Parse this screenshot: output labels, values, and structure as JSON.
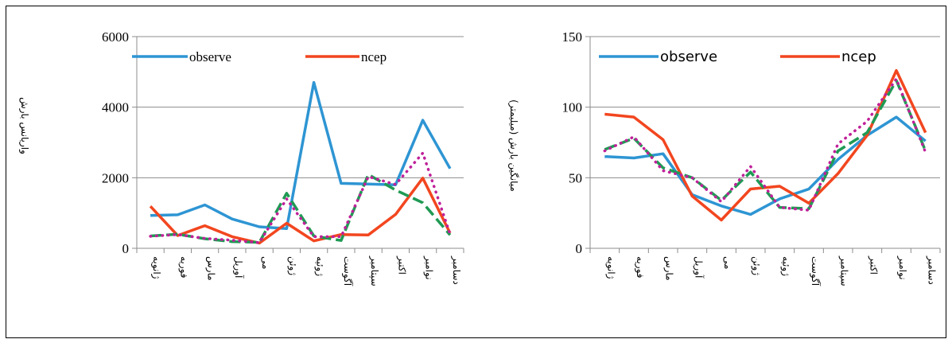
{
  "chart_data": [
    {
      "type": "line",
      "title": "",
      "ylabel": "واریانس بارش",
      "xlabel": "",
      "ylim": [
        0,
        6000
      ],
      "yticks": [
        0,
        2000,
        4000,
        6000
      ],
      "grid": true,
      "legend_position": "top",
      "categories": [
        "ژانویه",
        "فوریه",
        "مارس",
        "آوریل",
        "می",
        "ژوئن",
        "ژوئیه",
        "آگوست",
        "سپتامبر",
        "اکتبر",
        "نوامبر",
        "دسامبر"
      ],
      "series": [
        {
          "name": "observe",
          "color": "#2e95d3",
          "dash": "solid",
          "values": [
            930,
            950,
            1230,
            830,
            610,
            560,
            4700,
            1840,
            1820,
            1800,
            3630,
            2260
          ]
        },
        {
          "name": "ncep",
          "color": "#f2461f",
          "dash": "solid",
          "values": [
            1190,
            360,
            640,
            330,
            150,
            710,
            210,
            390,
            380,
            960,
            1990,
            430
          ]
        },
        {
          "name": "",
          "color": "#1f9a54",
          "dash": "dashed",
          "values": [
            350,
            400,
            270,
            190,
            170,
            1560,
            350,
            220,
            2090,
            1650,
            1290,
            380
          ]
        },
        {
          "name": "",
          "color": "#c0209a",
          "dash": "dotted",
          "values": [
            340,
            390,
            280,
            230,
            160,
            1400,
            330,
            330,
            2030,
            1810,
            2700,
            400
          ]
        }
      ]
    },
    {
      "type": "line",
      "title": "",
      "ylabel": "میانگین بارش (میلیمتر)",
      "xlabel": "",
      "ylim": [
        0,
        150
      ],
      "yticks": [
        0,
        50,
        100,
        150
      ],
      "grid": true,
      "legend_position": "top",
      "categories": [
        "ژانویه",
        "فوریه",
        "مارس",
        "آوریل",
        "می",
        "ژوئن",
        "ژوئیه",
        "آگوست",
        "سپتامبر",
        "اکتبر",
        "نوامبر",
        "دسامبر"
      ],
      "series": [
        {
          "name": "observe",
          "color": "#2e95d3",
          "dash": "solid",
          "values": [
            65,
            64,
            67,
            38,
            30,
            24,
            35,
            42,
            63,
            80,
            93,
            76
          ]
        },
        {
          "name": "ncep",
          "color": "#f2461f",
          "dash": "solid",
          "values": [
            95,
            93,
            77,
            37,
            20,
            42,
            44,
            32,
            53,
            80,
            126,
            82
          ]
        },
        {
          "name": "",
          "color": "#1f9a54",
          "dash": "dashed",
          "values": [
            70,
            78,
            57,
            50,
            34,
            54,
            29,
            28,
            69,
            82,
            119,
            69
          ]
        },
        {
          "name": "",
          "color": "#c0209a",
          "dash": "dotted",
          "values": [
            69,
            79,
            55,
            50,
            33,
            58,
            29,
            27,
            74,
            90,
            120,
            68
          ]
        }
      ]
    }
  ]
}
